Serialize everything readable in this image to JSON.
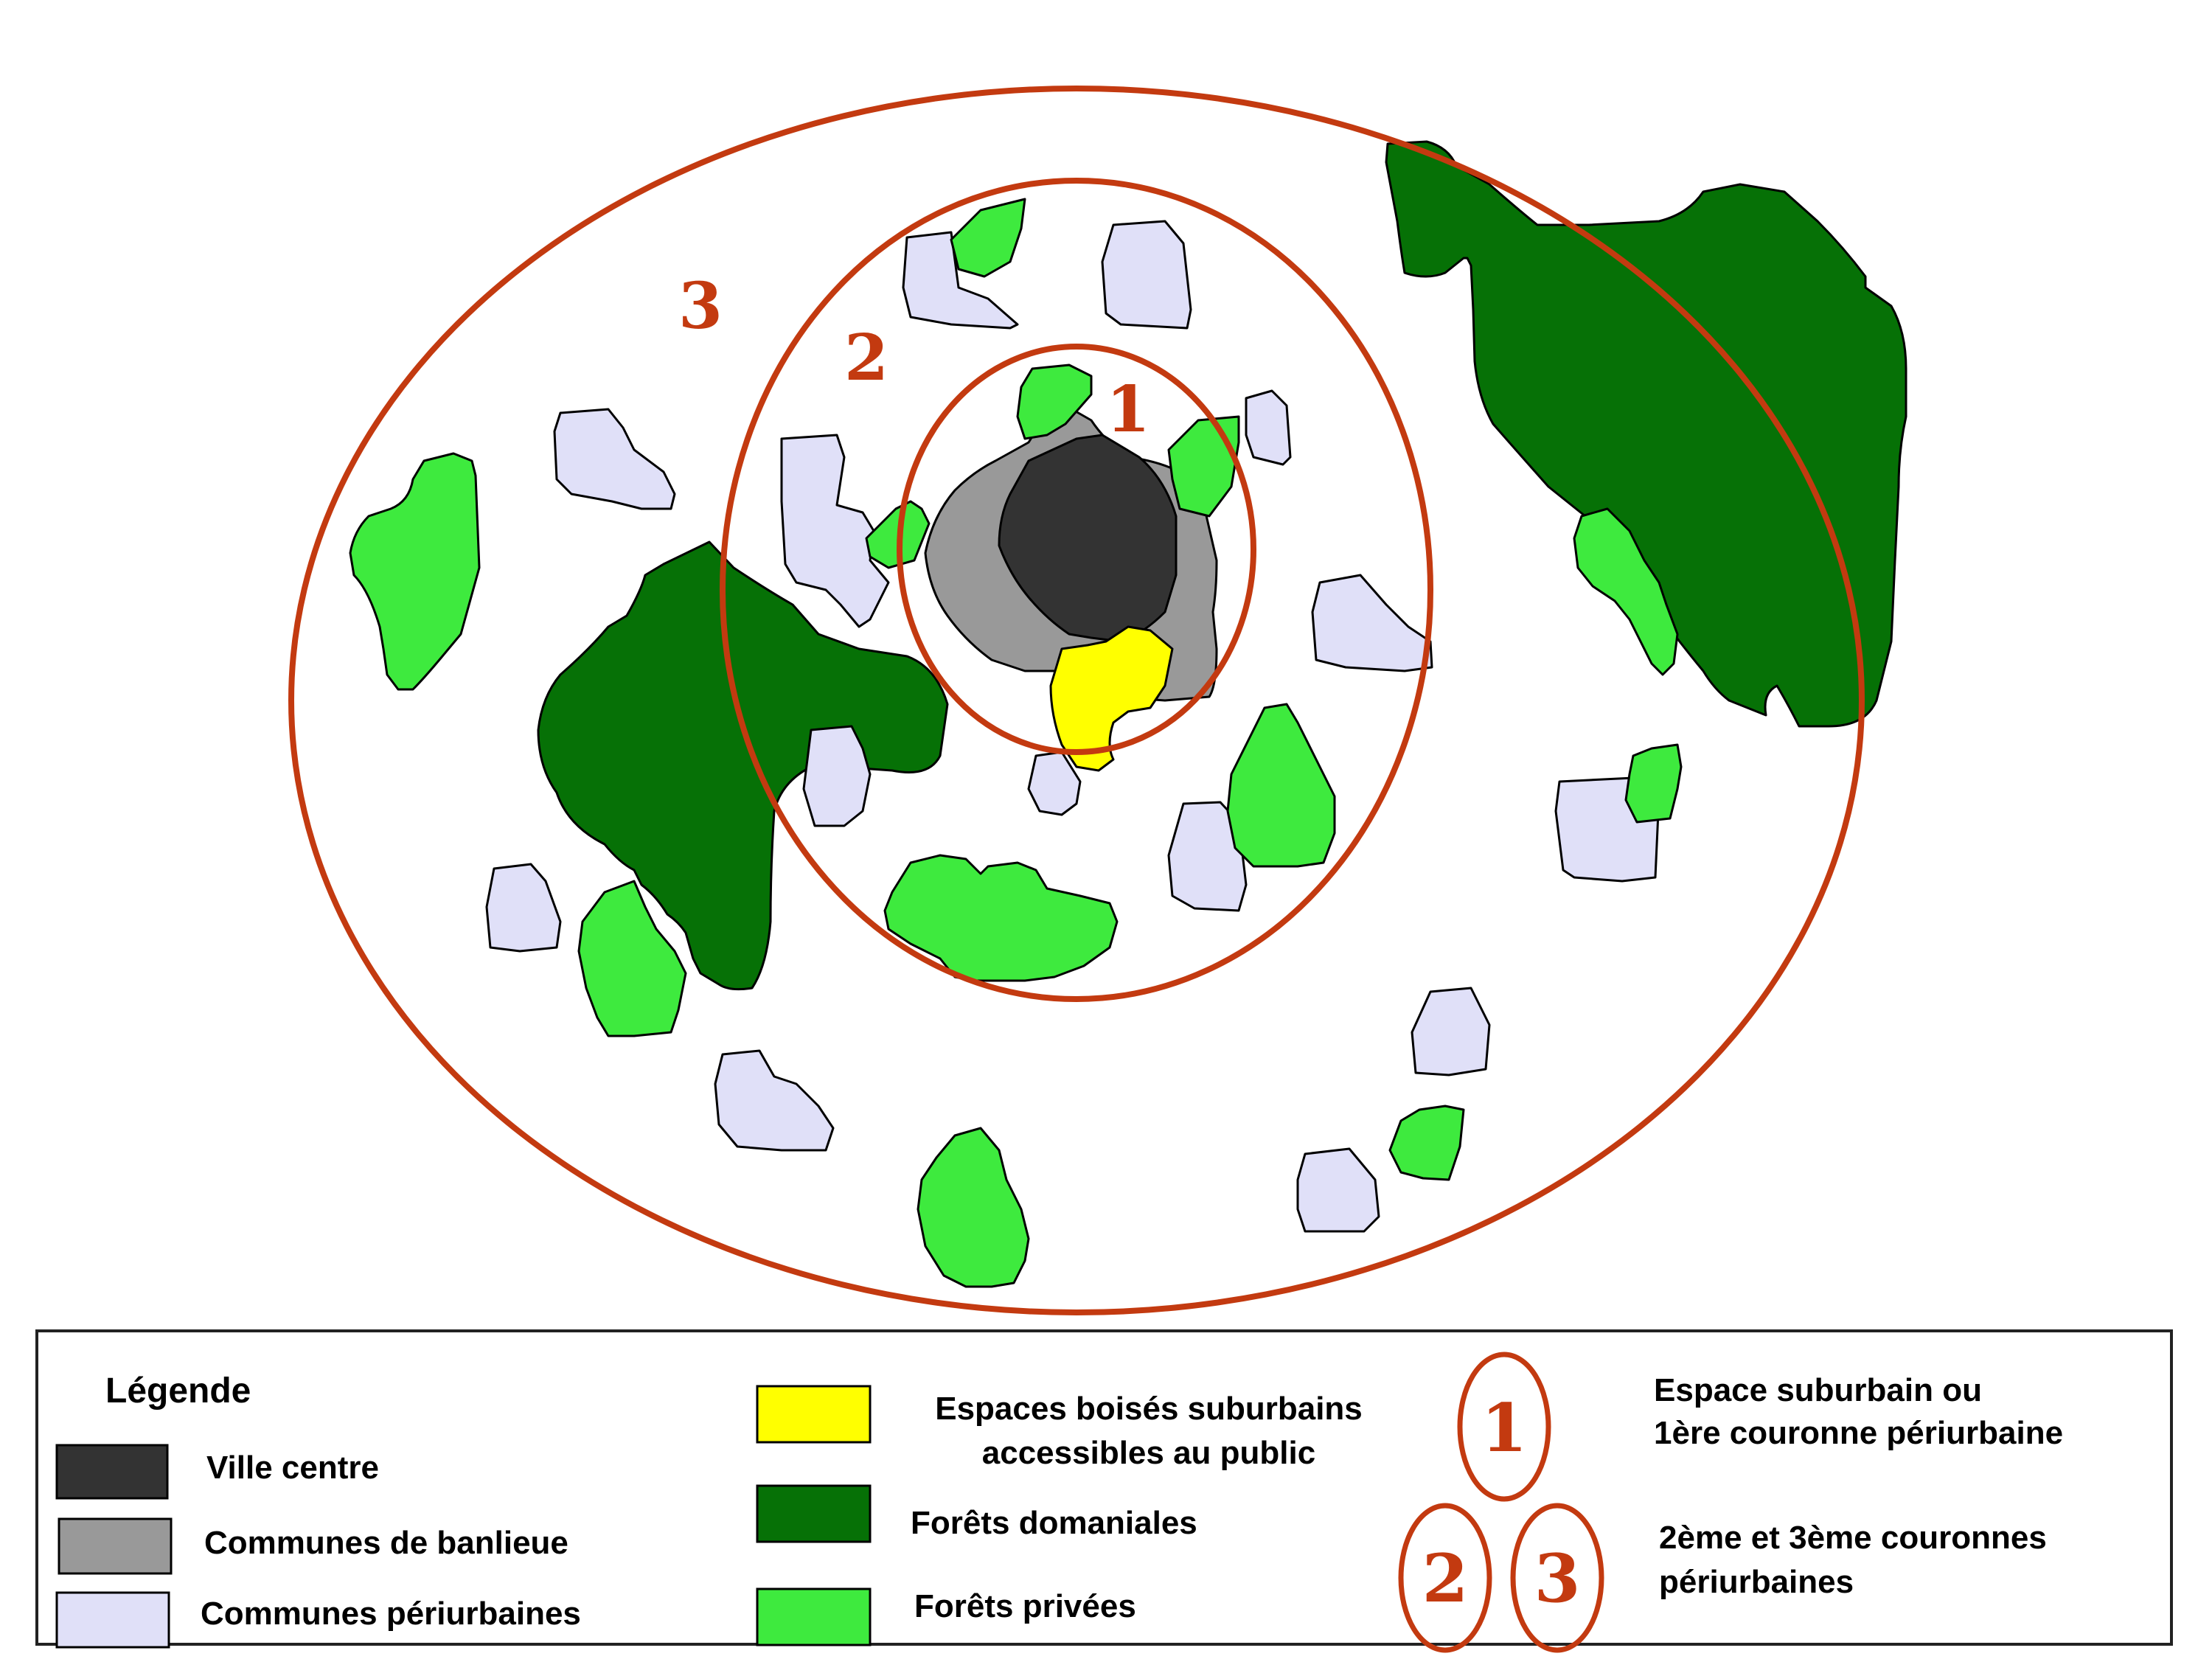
{
  "map": {
    "ring_labels": [
      "1",
      "2",
      "3"
    ]
  },
  "legend": {
    "title": "Légende",
    "items": {
      "ville_centre": {
        "label": "Ville centre",
        "color": "#333333"
      },
      "banlieue": {
        "label": "Communes de banlieue",
        "color": "#999999"
      },
      "periurbaines": {
        "label": "Communes périurbaines",
        "color": "#e0e0f8"
      },
      "espaces_boises": {
        "label_line1": "Espaces boisés suburbains",
        "label_line2": "accessibles au public",
        "color": "#ffff00"
      },
      "forets_domaniales": {
        "label": "Forêts domaniales",
        "color": "#067106"
      },
      "forets_privees": {
        "label": "Forêts privées",
        "color": "#3eea3e"
      }
    },
    "rings": {
      "ring1_label": "1",
      "ring1_text_line1": "Espace suburbain ou",
      "ring1_text_line2": "1ère couronne périurbaine",
      "ring2_label": "2",
      "ring3_label": "3",
      "ring23_text_line1": "2ème et 3ème couronnes",
      "ring23_text_line2": "périurbaines",
      "ring_color": "#c33a10"
    }
  }
}
